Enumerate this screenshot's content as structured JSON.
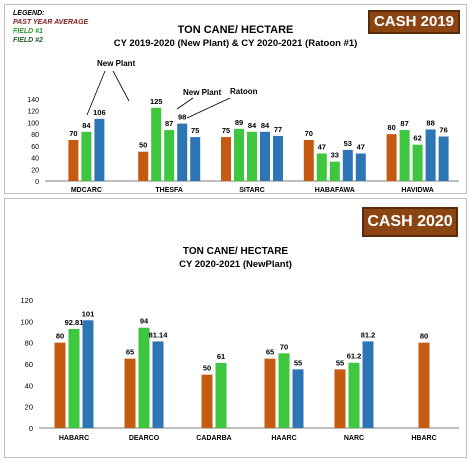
{
  "colors": {
    "past_year_average": "#c55a11",
    "field1": "#3ec63e",
    "field2": "#2e75b6",
    "badge": "#8b4513"
  },
  "chart_data": [
    {
      "type": "bar",
      "badge": "CASH 2019",
      "title": "TON CANE/ HECTARE",
      "subtitle": "CY 2019-2020 (New Plant) & CY 2020-2021 (Ratoon #1)",
      "legend": {
        "title": "LEGEND:",
        "entries": [
          "PAST YEAR AVERAGE",
          "FIELD #1",
          "FIELD #2"
        ]
      },
      "annotations": [
        "New Plant",
        "New Plant",
        "Ratoon"
      ],
      "categories": [
        "MDCARC",
        "THESFA",
        "SITARC",
        "HABAFAWA",
        "HAVIDWA"
      ],
      "ylim": [
        0,
        140
      ],
      "yticks": [
        "0",
        "20",
        "40",
        "60",
        "80",
        "100",
        "120",
        "140"
      ],
      "groups": [
        [
          {
            "s": 0,
            "v": 70,
            "label": "70"
          },
          {
            "s": 1,
            "v": 84,
            "label": "84"
          },
          {
            "s": 2,
            "v": 106,
            "label": "106"
          }
        ],
        [
          {
            "s": 0,
            "v": 50,
            "label": "50"
          },
          {
            "s": 1,
            "v": 125,
            "label": "125"
          },
          {
            "s": 1,
            "v": 87,
            "label": "87"
          },
          {
            "s": 2,
            "v": 98,
            "label": "98"
          },
          {
            "s": 2,
            "v": 75,
            "label": "75"
          }
        ],
        [
          {
            "s": 0,
            "v": 75,
            "label": "75"
          },
          {
            "s": 1,
            "v": 89,
            "label": "89"
          },
          {
            "s": 1,
            "v": 84,
            "label": "84"
          },
          {
            "s": 2,
            "v": 84,
            "label": "84"
          },
          {
            "s": 2,
            "v": 77,
            "label": "77"
          }
        ],
        [
          {
            "s": 0,
            "v": 70,
            "label": "70"
          },
          {
            "s": 1,
            "v": 47,
            "label": "47"
          },
          {
            "s": 1,
            "v": 33,
            "label": "33"
          },
          {
            "s": 2,
            "v": 53,
            "label": "53"
          },
          {
            "s": 2,
            "v": 47,
            "label": "47"
          }
        ],
        [
          {
            "s": 0,
            "v": 80,
            "label": "80"
          },
          {
            "s": 1,
            "v": 87,
            "label": "87"
          },
          {
            "s": 1,
            "v": 62,
            "label": "62"
          },
          {
            "s": 2,
            "v": 88,
            "label": "88"
          },
          {
            "s": 2,
            "v": 76,
            "label": "76"
          }
        ]
      ]
    },
    {
      "type": "bar",
      "badge": "CASH 2020",
      "title": "TON CANE/ HECTARE",
      "subtitle": "CY 2020-2021 (NewPlant)",
      "categories": [
        "HABARC",
        "DEARCO",
        "CADARBA",
        "HAARC",
        "NARC",
        "HBARC"
      ],
      "ylim": [
        0,
        120
      ],
      "yticks": [
        "0",
        "20",
        "40",
        "60",
        "80",
        "100",
        "120"
      ],
      "groups": [
        [
          {
            "s": 0,
            "v": 80,
            "label": "80"
          },
          {
            "s": 1,
            "v": 92.81,
            "label": "92.81"
          },
          {
            "s": 2,
            "v": 101,
            "label": "101"
          }
        ],
        [
          {
            "s": 0,
            "v": 65,
            "label": "65"
          },
          {
            "s": 1,
            "v": 94,
            "label": "94"
          },
          {
            "s": 2,
            "v": 81.14,
            "label": "81.14"
          }
        ],
        [
          {
            "s": 0,
            "v": 50,
            "label": "50"
          },
          {
            "s": 1,
            "v": 61,
            "label": "61"
          }
        ],
        [
          {
            "s": 0,
            "v": 65,
            "label": "65"
          },
          {
            "s": 1,
            "v": 70,
            "label": "70"
          },
          {
            "s": 2,
            "v": 55,
            "label": "55"
          }
        ],
        [
          {
            "s": 0,
            "v": 55,
            "label": "55"
          },
          {
            "s": 1,
            "v": 61.2,
            "label": "61.2"
          },
          {
            "s": 2,
            "v": 81.2,
            "label": "81.2"
          }
        ],
        [
          {
            "s": 0,
            "v": 80,
            "label": "80"
          }
        ]
      ]
    }
  ]
}
